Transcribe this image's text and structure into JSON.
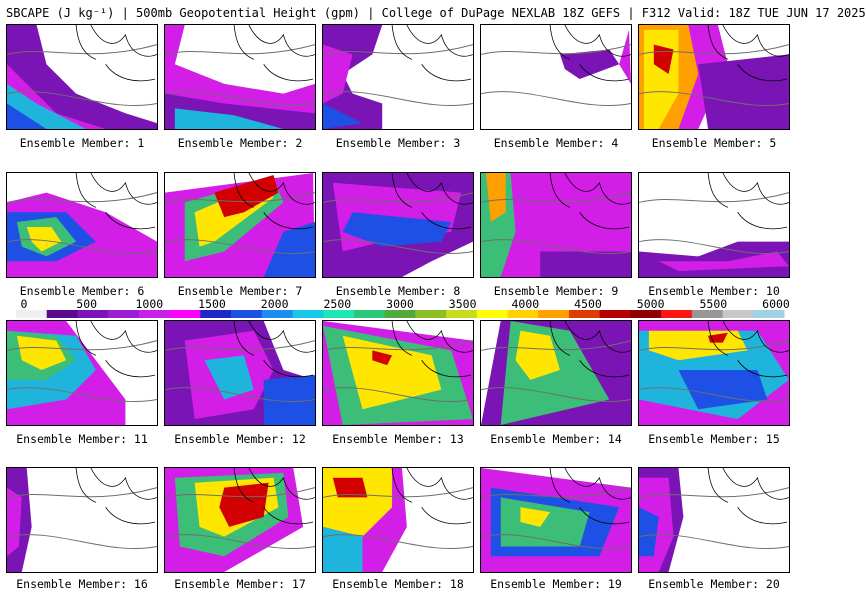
{
  "header": {
    "title": "SBCAPE (J kg⁻¹) | 500mb Geopotential Height (gpm) | College of DuPage NEXLAB 18Z GEFS | F312 Valid: 18Z TUE JUN 17 2025"
  },
  "members": [
    {
      "label": "Ensemble Member: 1"
    },
    {
      "label": "Ensemble Member: 2"
    },
    {
      "label": "Ensemble Member: 3"
    },
    {
      "label": "Ensemble Member: 4"
    },
    {
      "label": "Ensemble Member: 5"
    },
    {
      "label": "Ensemble Member: 6"
    },
    {
      "label": "Ensemble Member: 7"
    },
    {
      "label": "Ensemble Member: 8"
    },
    {
      "label": "Ensemble Member: 9"
    },
    {
      "label": "Ensemble Member: 10"
    },
    {
      "label": "Ensemble Member: 11"
    },
    {
      "label": "Ensemble Member: 12"
    },
    {
      "label": "Ensemble Member: 13"
    },
    {
      "label": "Ensemble Member: 14"
    },
    {
      "label": "Ensemble Member: 15"
    },
    {
      "label": "Ensemble Member: 16"
    },
    {
      "label": "Ensemble Member: 17"
    },
    {
      "label": "Ensemble Member: 18"
    },
    {
      "label": "Ensemble Member: 19"
    },
    {
      "label": "Ensemble Member: 20"
    }
  ],
  "colorbar": {
    "ticks": [
      "0",
      "500",
      "1000",
      "1500",
      "2000",
      "2500",
      "3000",
      "3500",
      "4000",
      "4500",
      "5000",
      "5500",
      "6000"
    ],
    "colors": [
      "#f0f0f0",
      "#5a0a8c",
      "#7a14b4",
      "#9a1ed2",
      "#c81ee6",
      "#ff00ff",
      "#1e28c8",
      "#1e50e6",
      "#1e8cf0",
      "#14c8e6",
      "#1ee6b4",
      "#28c878",
      "#50aa3c",
      "#8cbe28",
      "#c8dc1e",
      "#ffff00",
      "#ffd200",
      "#ffa000",
      "#dc3c00",
      "#b40000",
      "#8c0000",
      "#ff1414",
      "#969696",
      "#c8c8c8",
      "#a0d2e6"
    ],
    "min": 0,
    "max": 6000
  },
  "palette": {
    "purple": "#7a14b4",
    "magenta": "#d21ee6",
    "blue": "#1e50e6",
    "cyan": "#1eb4dc",
    "green": "#3cbe78",
    "yellow": "#ffe600",
    "orange": "#ffa000",
    "red": "#d20000",
    "darkred": "#960000",
    "coast": "#000000",
    "height_line": "#6e6e6e"
  }
}
